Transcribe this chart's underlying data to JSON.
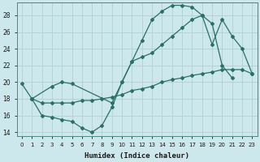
{
  "xlabel": "Humidex (Indice chaleur)",
  "bg_color": "#cce8ec",
  "grid_color": "#b0d0d5",
  "line_color": "#2a7068",
  "xlim": [
    -0.5,
    23.5
  ],
  "ylim": [
    13.5,
    29.5
  ],
  "xticks": [
    0,
    1,
    2,
    3,
    4,
    5,
    6,
    7,
    8,
    9,
    10,
    11,
    12,
    13,
    14,
    15,
    16,
    17,
    18,
    19,
    20,
    21,
    22,
    23
  ],
  "yticks": [
    14,
    16,
    18,
    20,
    22,
    24,
    26,
    28
  ],
  "curve1_x": [
    0,
    1,
    2,
    3,
    4,
    5,
    6,
    7,
    8,
    9,
    10,
    11,
    12,
    13,
    14,
    15,
    16,
    17,
    18,
    19,
    20,
    21
  ],
  "curve1_y": [
    19.8,
    18.0,
    16.0,
    15.8,
    15.5,
    15.3,
    14.5,
    14.0,
    14.8,
    17.0,
    20.0,
    22.5,
    25.0,
    27.5,
    28.5,
    29.2,
    29.2,
    29.0,
    28.0,
    27.0,
    22.0,
    20.5
  ],
  "curve2_x": [
    1,
    2,
    3,
    4,
    5,
    6,
    7,
    8,
    9,
    10,
    11,
    12,
    13,
    14,
    15,
    16,
    17,
    18,
    19,
    20,
    21,
    22,
    23
  ],
  "curve2_y": [
    18.0,
    17.5,
    17.5,
    17.5,
    17.5,
    17.8,
    17.8,
    18.0,
    18.2,
    18.5,
    19.0,
    19.2,
    19.5,
    20.0,
    20.3,
    20.5,
    20.8,
    21.0,
    21.2,
    21.5,
    21.5,
    21.5,
    21.0
  ],
  "curve3_x": [
    1,
    3,
    4,
    5,
    9,
    10,
    11,
    12,
    13,
    14,
    15,
    16,
    17,
    18,
    19,
    20,
    21,
    22,
    23
  ],
  "curve3_y": [
    18.0,
    19.5,
    20.0,
    19.8,
    17.5,
    20.0,
    22.5,
    23.0,
    23.5,
    24.5,
    25.5,
    26.5,
    27.5,
    28.0,
    24.5,
    27.5,
    25.5,
    24.0,
    21.0
  ]
}
